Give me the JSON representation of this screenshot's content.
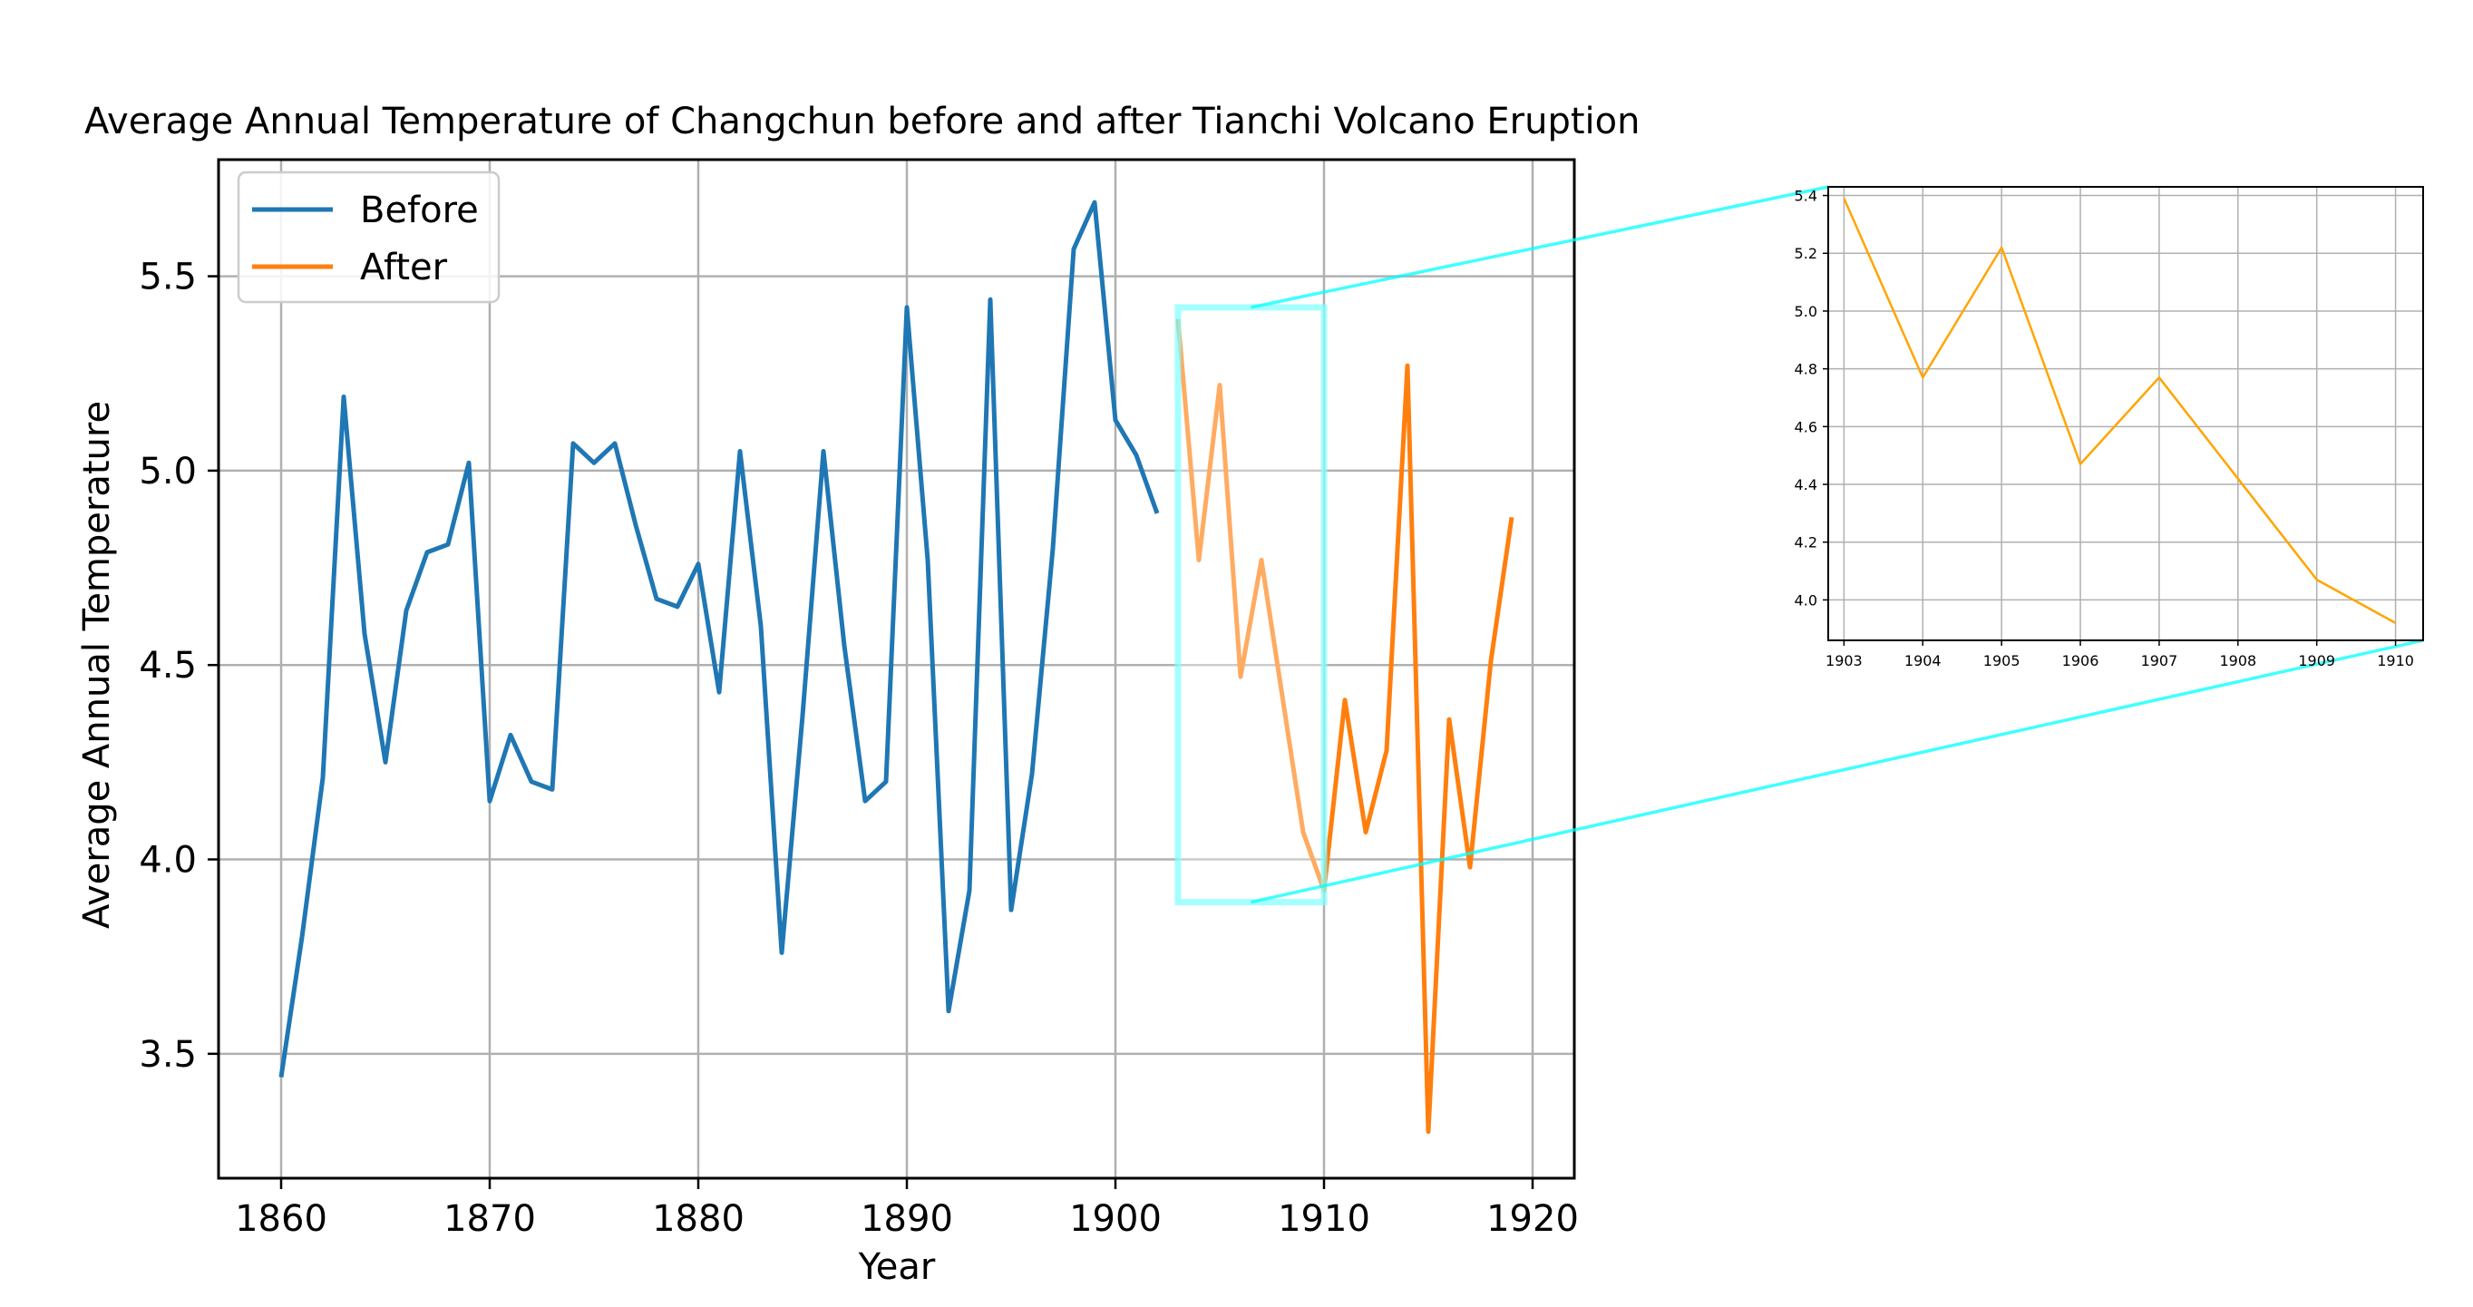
{
  "chart_data": [
    {
      "type": "line",
      "title": "Average Annual Temperature of Changchun before and after Tianchi Volcano Eruption",
      "xlabel": "Year",
      "ylabel": "Average Annual Temperature",
      "xlim": [
        1857,
        1922
      ],
      "ylim": [
        3.18,
        5.8
      ],
      "xticks": [
        1860,
        1870,
        1880,
        1890,
        1900,
        1910,
        1920
      ],
      "xtick_labels": [
        "1860",
        "1870",
        "1880",
        "1890",
        "1900",
        "1910",
        "1920"
      ],
      "yticks": [
        3.5,
        4.0,
        4.5,
        5.0,
        5.5
      ],
      "ytick_labels": [
        "3.5",
        "4.0",
        "4.5",
        "5.0",
        "5.5"
      ],
      "grid": true,
      "legend_position": "top-left",
      "series": [
        {
          "name": "Before",
          "color": "#1f77b4",
          "x": [
            1860,
            1861,
            1862,
            1863,
            1864,
            1865,
            1866,
            1867,
            1868,
            1869,
            1870,
            1871,
            1872,
            1873,
            1874,
            1875,
            1876,
            1877,
            1878,
            1879,
            1880,
            1881,
            1882,
            1883,
            1884,
            1885,
            1886,
            1887,
            1888,
            1889,
            1890,
            1891,
            1892,
            1893,
            1894,
            1895,
            1896,
            1897,
            1898,
            1899,
            1900,
            1901,
            1902
          ],
          "y": [
            3.44,
            3.8,
            4.21,
            5.19,
            4.58,
            4.25,
            4.64,
            4.79,
            4.81,
            5.02,
            4.15,
            4.32,
            4.2,
            4.18,
            5.07,
            5.02,
            5.07,
            4.86,
            4.67,
            4.65,
            4.76,
            4.43,
            5.05,
            4.6,
            3.76,
            4.37,
            5.05,
            4.55,
            4.15,
            4.2,
            5.42,
            4.77,
            3.61,
            3.92,
            5.44,
            3.87,
            4.22,
            4.8,
            5.57,
            5.69,
            5.13,
            5.04,
            4.89
          ]
        },
        {
          "name": "After",
          "color": "#ff7f0e",
          "x": [
            1903,
            1904,
            1905,
            1906,
            1907,
            1908,
            1909,
            1910,
            1911,
            1912,
            1913,
            1914,
            1915,
            1916,
            1917,
            1918,
            1919
          ],
          "y": [
            5.39,
            4.77,
            5.22,
            4.47,
            4.77,
            4.42,
            4.07,
            3.92,
            4.41,
            4.07,
            4.28,
            5.27,
            3.3,
            4.36,
            3.98,
            4.51,
            4.88
          ]
        }
      ],
      "highlight": {
        "x_range": [
          1903,
          1910
        ],
        "y_range": [
          3.89,
          5.42
        ],
        "color": "#7fffff"
      }
    },
    {
      "type": "line",
      "title": "",
      "xlabel": "",
      "ylabel": "",
      "xlim": [
        1902.8,
        1910.35
      ],
      "ylim": [
        3.86,
        5.43
      ],
      "xticks": [
        1903,
        1904,
        1905,
        1906,
        1907,
        1908,
        1909,
        1910
      ],
      "xtick_labels": [
        "1903",
        "1904",
        "1905",
        "1906",
        "1907",
        "1908",
        "1909",
        "1910"
      ],
      "yticks": [
        4.0,
        4.2,
        4.4,
        4.6,
        4.8,
        5.0,
        5.2,
        5.4
      ],
      "ytick_labels": [
        "4.0",
        "4.2",
        "4.4",
        "4.6",
        "4.8",
        "5.0",
        "5.2",
        "5.4"
      ],
      "grid": true,
      "series": [
        {
          "color": "#ffa500",
          "x": [
            1903,
            1904,
            1905,
            1906,
            1907,
            1908,
            1909,
            1910
          ],
          "y": [
            5.39,
            4.77,
            5.22,
            4.47,
            4.77,
            4.42,
            4.07,
            3.92
          ]
        }
      ]
    }
  ]
}
